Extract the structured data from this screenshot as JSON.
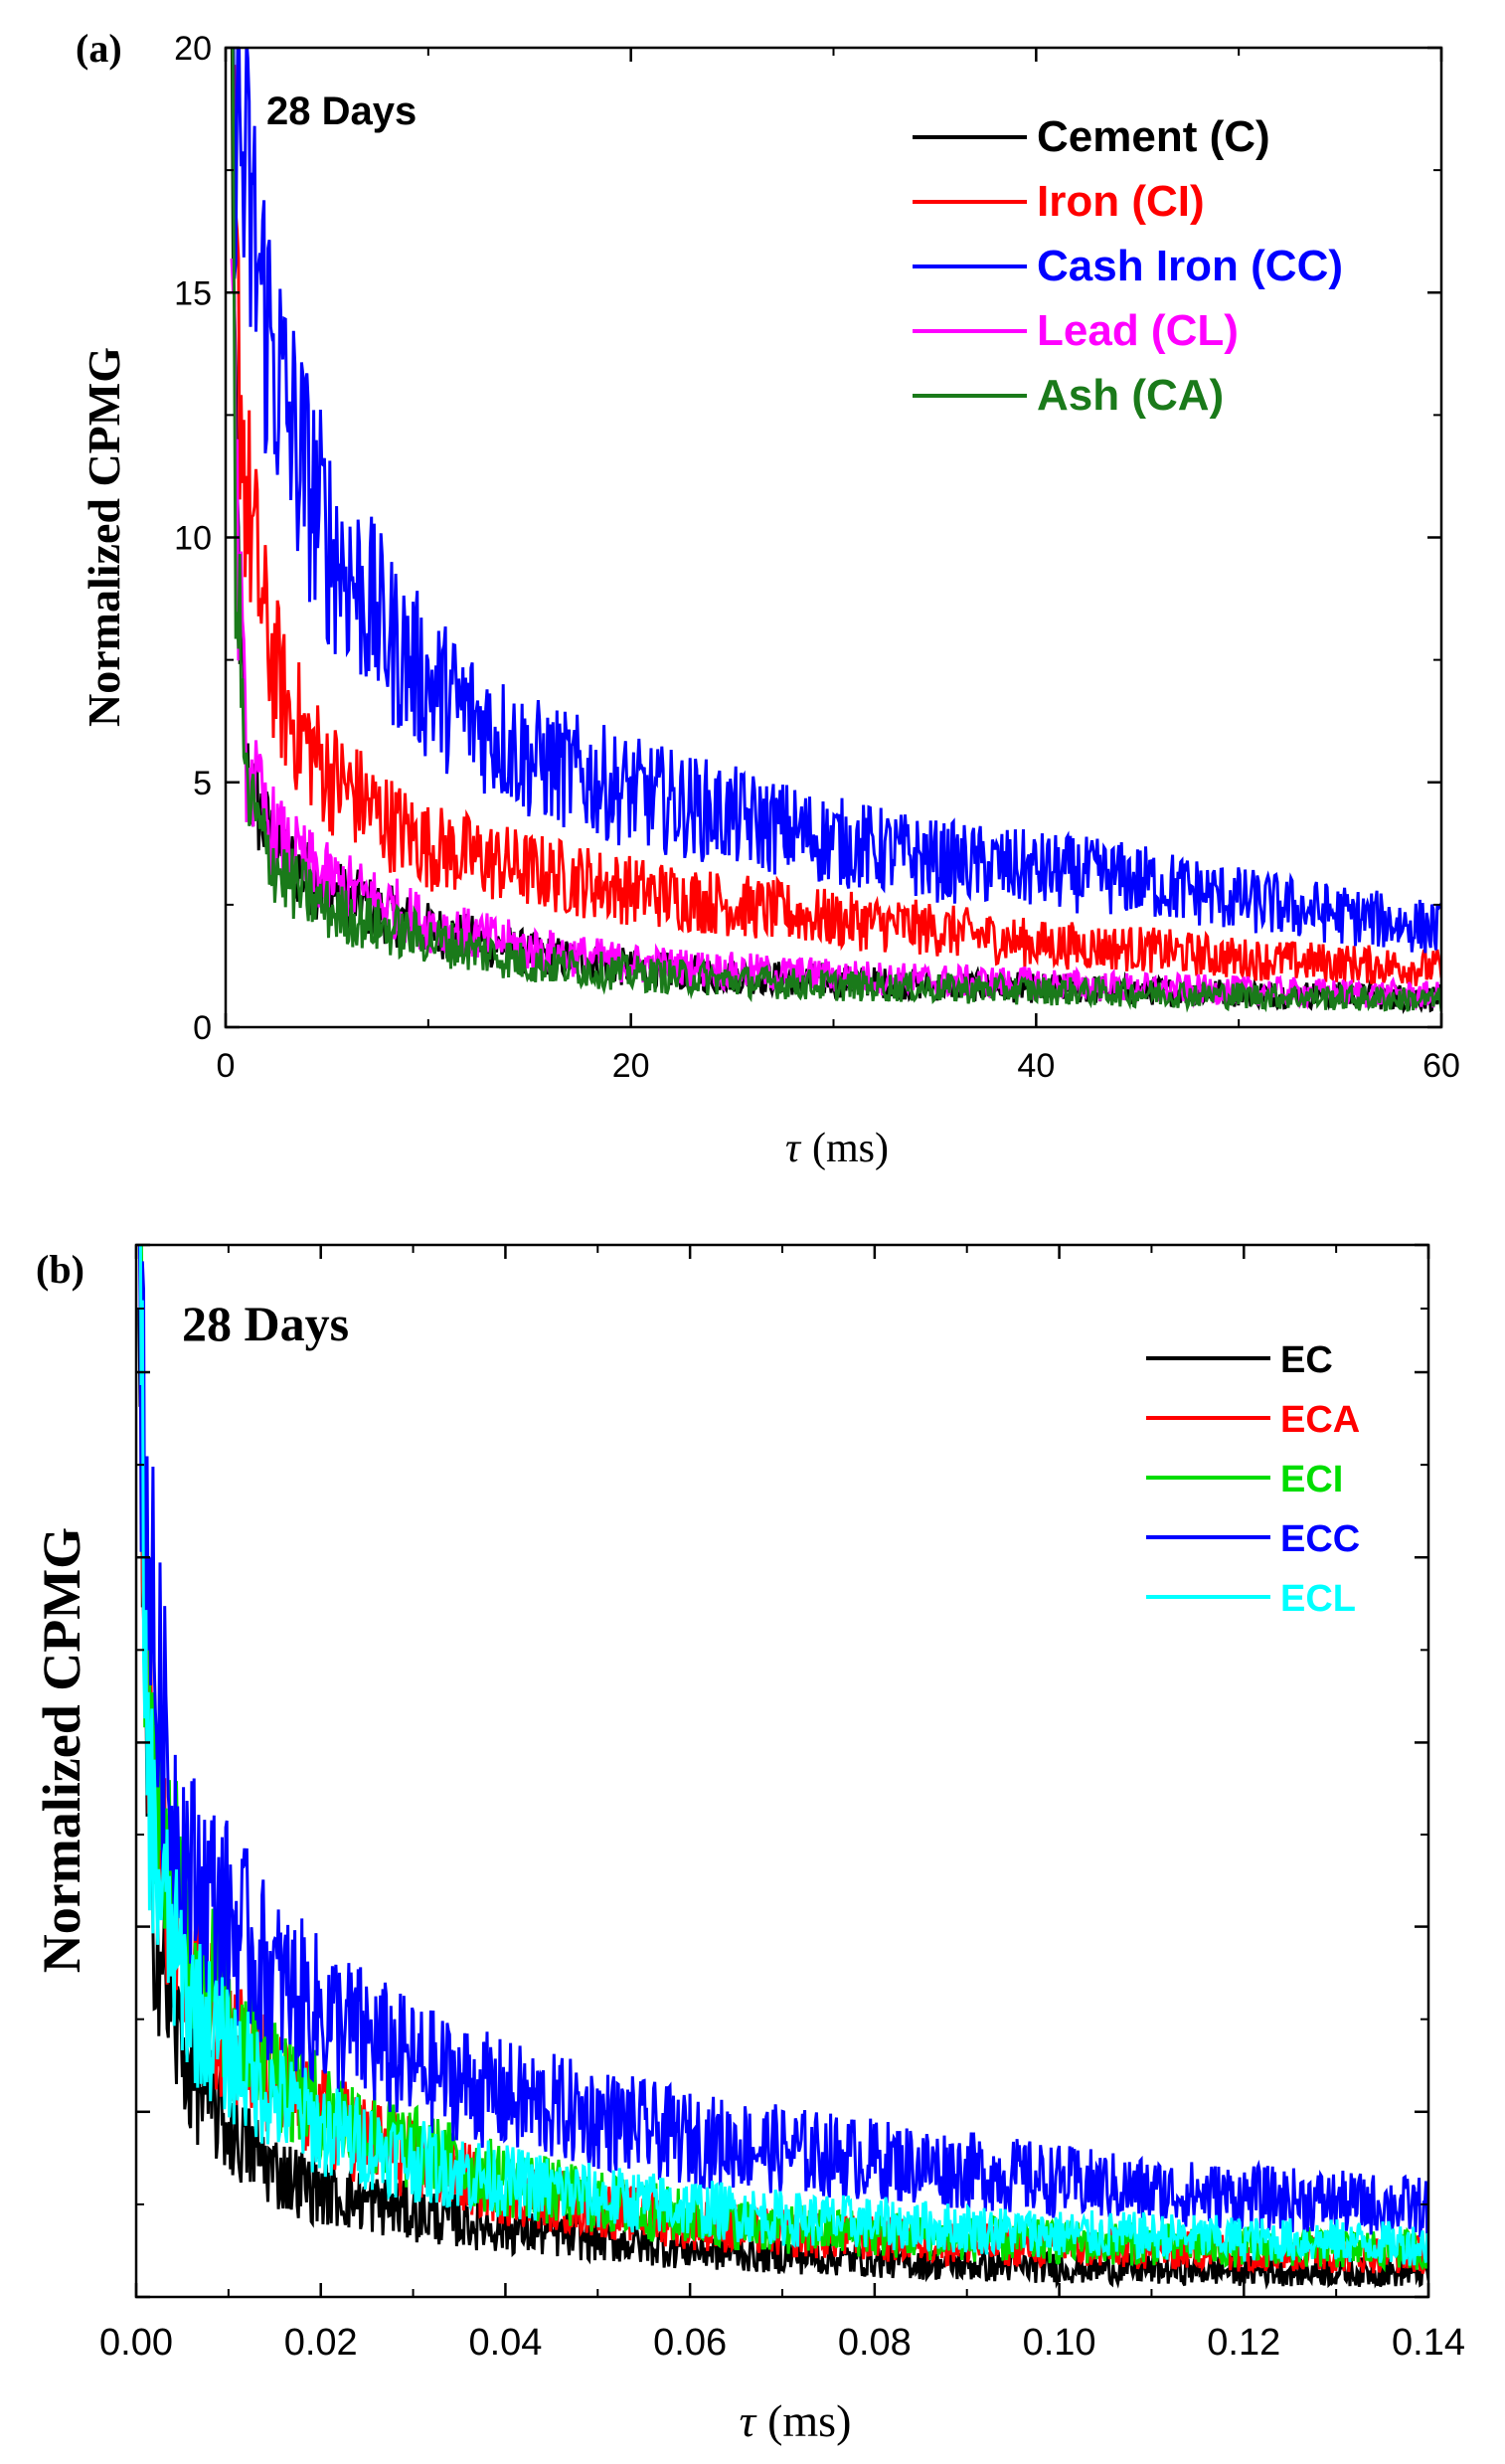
{
  "chart_data": [
    {
      "panel_label": "(a)",
      "type": "line",
      "annotation": "28 Days",
      "xlabel_symbol": "τ",
      "xlabel_unit": "(ms)",
      "ylabel": "Normalized CPMG",
      "xlim": [
        0,
        60
      ],
      "ylim": [
        0,
        20
      ],
      "xticks": [
        0,
        20,
        40,
        60
      ],
      "xtick_labels": [
        "0",
        "20",
        "40",
        "60"
      ],
      "yticks": [
        0,
        5,
        10,
        15,
        20
      ],
      "ytick_labels": [
        "0",
        "5",
        "10",
        "15",
        "20"
      ],
      "grid": false,
      "legend_position": "top-right",
      "series": [
        {
          "name": "Cement (C)",
          "color": "#000000",
          "x": [
            0.3,
            0.5,
            1,
            2,
            3,
            5,
            8,
            10,
            15,
            20,
            25,
            30,
            35,
            40,
            45,
            50,
            55,
            60
          ],
          "values": [
            20,
            11,
            5.2,
            4.0,
            3.4,
            2.8,
            2.3,
            2.0,
            1.5,
            1.2,
            1.05,
            0.95,
            0.85,
            0.8,
            0.75,
            0.7,
            0.65,
            0.6
          ]
        },
        {
          "name": "Iron (CI)",
          "color": "#ff0000",
          "x": [
            0.3,
            0.5,
            1,
            2,
            3,
            5,
            8,
            10,
            15,
            20,
            25,
            30,
            35,
            40,
            45,
            50,
            55,
            60
          ],
          "values": [
            20,
            15,
            11,
            8.0,
            6.5,
            5.2,
            4.2,
            3.7,
            3.2,
            2.8,
            2.5,
            2.2,
            2.0,
            1.7,
            1.6,
            1.4,
            1.3,
            1.2
          ]
        },
        {
          "name": "Cash Iron (CC)",
          "color": "#0000ff",
          "x": [
            0.3,
            0.5,
            1,
            2,
            3,
            5,
            8,
            10,
            15,
            20,
            25,
            30,
            35,
            40,
            45,
            50,
            55,
            60
          ],
          "values": [
            20,
            19,
            17,
            14.5,
            12.5,
            10,
            8.0,
            7.0,
            5.5,
            4.8,
            4.3,
            3.8,
            3.4,
            3.2,
            3.0,
            2.6,
            2.3,
            2.0
          ]
        },
        {
          "name": "Lead (CL)",
          "color": "#ff00ff",
          "x": [
            0.3,
            0.5,
            1,
            2,
            3,
            5,
            8,
            10,
            15,
            20,
            25,
            30,
            35,
            40,
            45,
            50,
            55,
            60
          ],
          "values": [
            20,
            11,
            5.4,
            4.2,
            3.6,
            3.0,
            2.5,
            2.1,
            1.6,
            1.3,
            1.15,
            1.05,
            0.95,
            0.9,
            0.8,
            0.75,
            0.7,
            0.65
          ]
        },
        {
          "name": "Ash (CA)",
          "color": "#1a7a1a",
          "x": [
            0.3,
            0.5,
            1,
            2,
            3,
            5,
            8,
            10,
            15,
            20,
            25,
            30,
            35,
            40,
            45,
            50,
            55,
            60
          ],
          "values": [
            20,
            10,
            4.8,
            3.6,
            3.0,
            2.4,
            2.0,
            1.8,
            1.3,
            1.1,
            0.95,
            0.85,
            0.8,
            0.75,
            0.7,
            0.65,
            0.6,
            0.55
          ]
        }
      ]
    },
    {
      "panel_label": "(b)",
      "type": "line",
      "annotation": "28 Days",
      "xlabel_symbol": "τ",
      "xlabel_unit": "(ms)",
      "ylabel": "Normalized CPMG",
      "xlim": [
        0,
        0.14
      ],
      "ylim": [
        0,
        1
      ],
      "xticks": [
        0,
        0.02,
        0.04,
        0.06,
        0.08,
        0.1,
        0.12,
        0.14
      ],
      "xtick_labels": [
        "0.00",
        "0.02",
        "0.04",
        "0.06",
        "0.08",
        "0.10",
        "0.12",
        "0.14"
      ],
      "ytick_labels": [],
      "grid": false,
      "legend_position": "top-right",
      "series": [
        {
          "name": "EC",
          "color": "#000000",
          "x": [
            0.0003,
            0.001,
            0.002,
            0.004,
            0.006,
            0.01,
            0.015,
            0.02,
            0.03,
            0.04,
            0.05,
            0.06,
            0.07,
            0.08,
            0.09,
            0.1,
            0.11,
            0.12,
            0.13,
            0.14
          ],
          "values": [
            1.0,
            0.5,
            0.36,
            0.26,
            0.21,
            0.16,
            0.12,
            0.1,
            0.08,
            0.065,
            0.055,
            0.045,
            0.04,
            0.035,
            0.03,
            0.028,
            0.026,
            0.025,
            0.024,
            0.023
          ]
        },
        {
          "name": "ECA",
          "color": "#ff0000",
          "x": [
            0.0003,
            0.001,
            0.002,
            0.004,
            0.006,
            0.01,
            0.015,
            0.02,
            0.03,
            0.04,
            0.05,
            0.06,
            0.07,
            0.08,
            0.09,
            0.1,
            0.11,
            0.12,
            0.13,
            0.14
          ],
          "values": [
            1.0,
            0.6,
            0.46,
            0.36,
            0.31,
            0.25,
            0.2,
            0.17,
            0.13,
            0.1,
            0.085,
            0.07,
            0.06,
            0.055,
            0.05,
            0.047,
            0.045,
            0.043,
            0.041,
            0.04
          ]
        },
        {
          "name": "ECI",
          "color": "#00dd00",
          "x": [
            0.0003,
            0.001,
            0.002,
            0.004,
            0.006,
            0.01,
            0.015,
            0.02,
            0.03,
            0.04,
            0.05,
            0.06,
            0.07,
            0.08,
            0.09,
            0.1,
            0.11,
            0.12,
            0.13,
            0.14
          ],
          "values": [
            1.0,
            0.62,
            0.5,
            0.4,
            0.34,
            0.27,
            0.22,
            0.18,
            0.14,
            0.11,
            0.09,
            0.075,
            0.065,
            0.06,
            0.055,
            0.052,
            0.05,
            0.048,
            0.046,
            0.045
          ]
        },
        {
          "name": "ECC",
          "color": "#0000ff",
          "x": [
            0.0003,
            0.001,
            0.002,
            0.004,
            0.006,
            0.01,
            0.015,
            0.02,
            0.03,
            0.04,
            0.05,
            0.06,
            0.07,
            0.08,
            0.09,
            0.1,
            0.11,
            0.12,
            0.13,
            0.14
          ],
          "values": [
            1.0,
            0.8,
            0.6,
            0.46,
            0.4,
            0.36,
            0.3,
            0.27,
            0.22,
            0.19,
            0.17,
            0.15,
            0.14,
            0.13,
            0.12,
            0.11,
            0.1,
            0.095,
            0.09,
            0.085
          ]
        },
        {
          "name": "ECL",
          "color": "#00ffff",
          "x": [
            0.0003,
            0.001,
            0.002,
            0.004,
            0.006,
            0.01,
            0.015,
            0.02,
            0.03,
            0.04,
            0.05,
            0.06,
            0.07,
            0.08,
            0.09,
            0.1,
            0.11,
            0.12,
            0.13,
            0.14
          ],
          "values": [
            1.0,
            0.55,
            0.42,
            0.33,
            0.28,
            0.23,
            0.19,
            0.16,
            0.13,
            0.11,
            0.095,
            0.085,
            0.075,
            0.07,
            0.065,
            0.06,
            0.058,
            0.055,
            0.053,
            0.05
          ]
        }
      ]
    }
  ]
}
